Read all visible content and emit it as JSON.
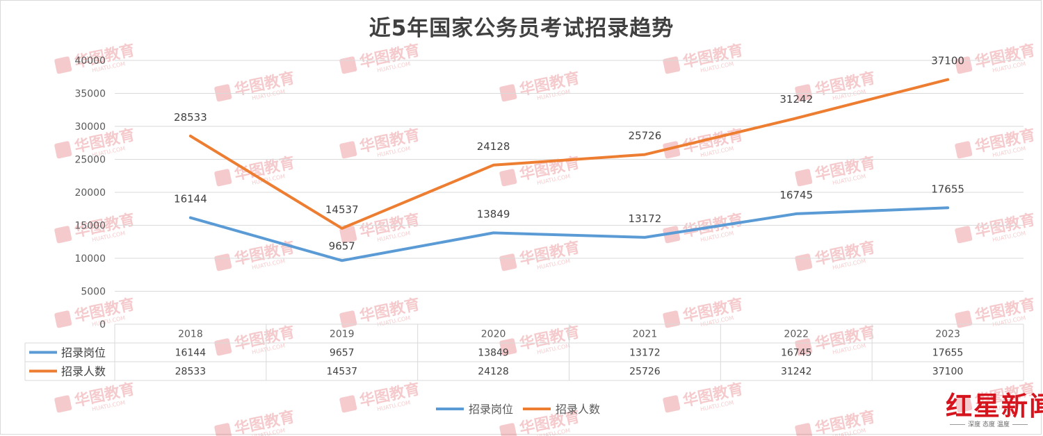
{
  "chart_data": {
    "type": "line",
    "title": "近5年国家公务员考试招录趋势",
    "categories": [
      "2018",
      "2019",
      "2020",
      "2021",
      "2022",
      "2023"
    ],
    "series": [
      {
        "name": "招录岗位",
        "color": "#5b9bd5",
        "values": [
          16144,
          9657,
          13849,
          13172,
          16745,
          17655
        ]
      },
      {
        "name": "招录人数",
        "color": "#ed7d31",
        "values": [
          28533,
          14537,
          24128,
          25726,
          31242,
          37100
        ]
      }
    ],
    "ylim": [
      0,
      40000
    ],
    "yticks": [
      "0",
      "5000",
      "10000",
      "15000",
      "20000",
      "25000",
      "30000",
      "35000",
      "40000"
    ],
    "grid": true,
    "data_table": true,
    "legend_position": "bottom"
  },
  "watermark": {
    "brand": "华图教育",
    "domain": "HUATU.COM"
  },
  "news_logo": {
    "brand": "红星新闻",
    "slogan": "深度 态度 温度"
  }
}
